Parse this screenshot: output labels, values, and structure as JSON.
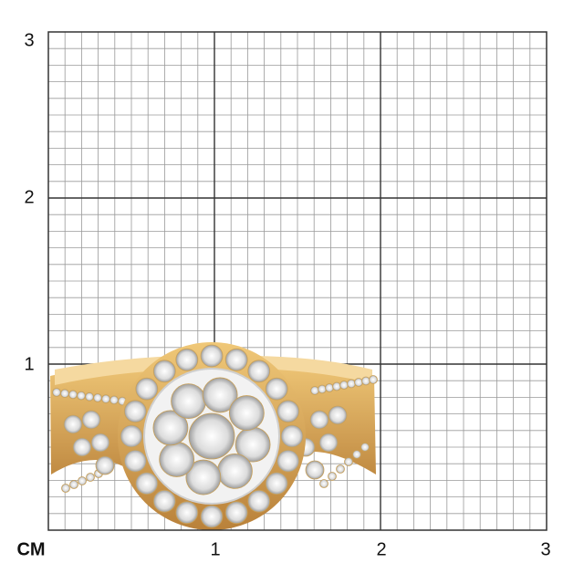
{
  "scale": {
    "unit_label": "CM",
    "y_labels": [
      "1",
      "2",
      "3"
    ],
    "x_labels": [
      "1",
      "2",
      "3"
    ],
    "minor_divisions_per_cm": 10
  },
  "product": {
    "type": "diamond halo ring",
    "metal_color": "#d9a653",
    "stone_color": "#e6e6e6"
  },
  "colors": {
    "major_grid": "#333333",
    "minor_grid": "#9a9a9a"
  }
}
